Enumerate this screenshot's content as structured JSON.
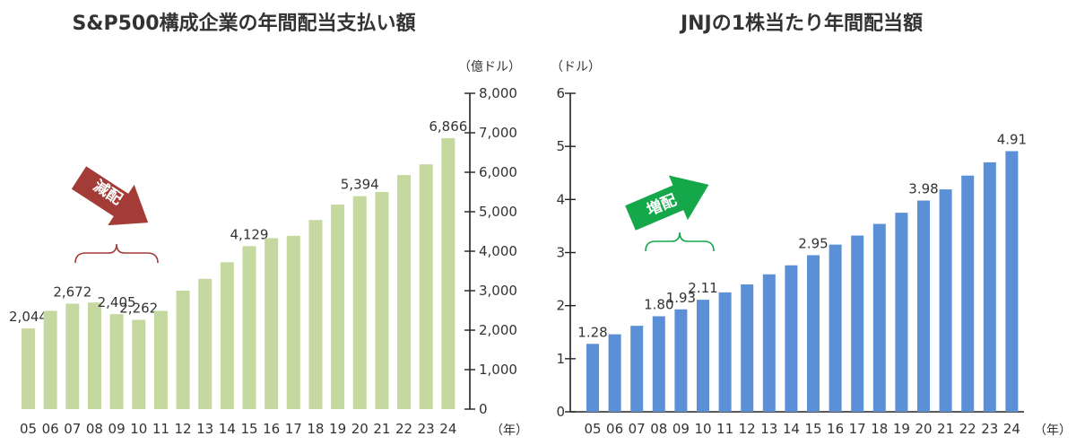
{
  "chart_data": [
    {
      "type": "bar",
      "title": "S&P500構成企業の年間配当支払い額",
      "unit_label": "（億ドル）",
      "xunit_label": "（年）",
      "categories": [
        "05",
        "06",
        "07",
        "08",
        "09",
        "10",
        "11",
        "12",
        "13",
        "14",
        "15",
        "16",
        "17",
        "18",
        "19",
        "20",
        "21",
        "22",
        "23",
        "24"
      ],
      "values": [
        2044,
        2490,
        2672,
        2700,
        2405,
        2262,
        2490,
        3000,
        3300,
        3720,
        4129,
        4330,
        4390,
        4790,
        5180,
        5394,
        5500,
        5930,
        6200,
        6866
      ],
      "data_labels": {
        "05": "2,044",
        "07": "2,672",
        "09": "2,405",
        "10": "2,262",
        "15": "4,129",
        "20": "5,394",
        "24": "6,866"
      },
      "y_ticks": [
        "0",
        "1,000",
        "2,000",
        "3,000",
        "4,000",
        "5,000",
        "6,000",
        "7,000",
        "8,000"
      ],
      "ylim": [
        0,
        8000
      ],
      "y_axis_side": "right",
      "bar_color": "#c5d89f",
      "annotation": {
        "text": "減配",
        "color": "#a33b36",
        "bracket": [
          "07",
          "11"
        ]
      }
    },
    {
      "type": "bar",
      "title": "JNJの1株当たり年間配当額",
      "unit_label": "（ドル）",
      "xunit_label": "（年）",
      "categories": [
        "05",
        "06",
        "07",
        "08",
        "09",
        "10",
        "11",
        "12",
        "13",
        "14",
        "15",
        "16",
        "17",
        "18",
        "19",
        "20",
        "21",
        "22",
        "23",
        "24"
      ],
      "values": [
        1.28,
        1.46,
        1.62,
        1.8,
        1.93,
        2.11,
        2.25,
        2.4,
        2.59,
        2.76,
        2.95,
        3.15,
        3.32,
        3.54,
        3.75,
        3.98,
        4.19,
        4.45,
        4.7,
        4.91
      ],
      "data_labels": {
        "05": "1.28",
        "08": "1.80",
        "09": "1.93",
        "10": "2.11",
        "15": "2.95",
        "20": "3.98",
        "24": "4.91"
      },
      "y_ticks": [
        "0",
        "1",
        "2",
        "3",
        "4",
        "5",
        "6"
      ],
      "ylim": [
        0,
        6
      ],
      "y_axis_side": "left",
      "bar_color": "#5b8fd6",
      "annotation": {
        "text": "増配",
        "color": "#14a84a",
        "bracket": [
          "08",
          "10"
        ]
      }
    }
  ]
}
